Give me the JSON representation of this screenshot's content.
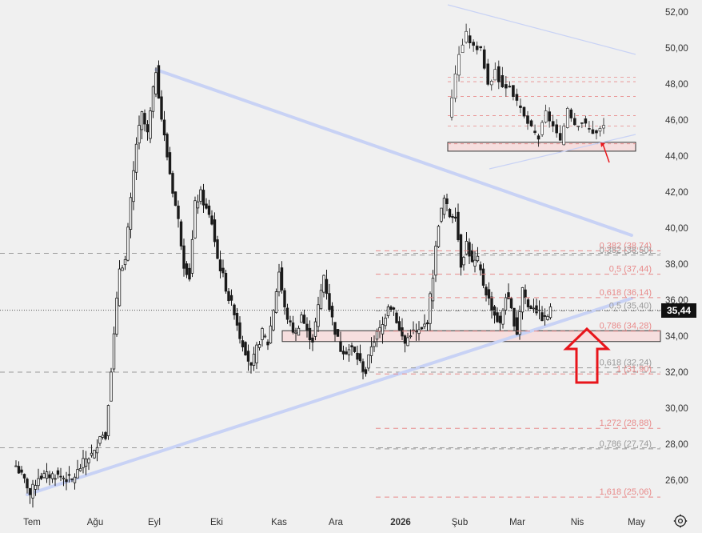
{
  "chart_data": {
    "type": "candlestick",
    "y_axis": {
      "range": [
        24.4,
        53.5
      ],
      "ticks": [
        "26,00",
        "28,00",
        "30,00",
        "32,00",
        "34,00",
        "36,00",
        "38,00",
        "40,00",
        "42,00",
        "44,00",
        "46,00",
        "48,00",
        "50,00",
        "52,00"
      ],
      "tick_values": [
        26,
        28,
        30,
        32,
        34,
        36,
        38,
        40,
        42,
        44,
        46,
        48,
        50,
        52
      ],
      "position": "right"
    },
    "x_axis": {
      "tick_labels": [
        "Tem",
        "Ağu",
        "Eyl",
        "Eki",
        "Kas",
        "Ara",
        "2026",
        "Şub",
        "Mar",
        "Nis",
        "May"
      ],
      "bold_labels": [
        "2026"
      ]
    },
    "current_price": {
      "label": "35,44",
      "value": 35.44
    },
    "series": {
      "start_index": 0,
      "end_index": 191,
      "anchors": [
        [
          0,
          26.8
        ],
        [
          4,
          25.7
        ],
        [
          5,
          25.2
        ],
        [
          8,
          26.2
        ],
        [
          14,
          26.3
        ],
        [
          20,
          26.0
        ],
        [
          25,
          27.2
        ],
        [
          28,
          27.5
        ],
        [
          30,
          28.6
        ],
        [
          32,
          28.4
        ],
        [
          33,
          30.4
        ],
        [
          35,
          34.0
        ],
        [
          37,
          37.8
        ],
        [
          39,
          38.2
        ],
        [
          41,
          41.5
        ],
        [
          43,
          44.7
        ],
        [
          45,
          46.3
        ],
        [
          47,
          45.2
        ],
        [
          49,
          47.6
        ],
        [
          50,
          48.8
        ],
        [
          52,
          46.1
        ],
        [
          54,
          44.0
        ],
        [
          56,
          42.1
        ],
        [
          58,
          40.4
        ],
        [
          60,
          38.0
        ],
        [
          62,
          37.3
        ],
        [
          64,
          41.3
        ],
        [
          66,
          41.9
        ],
        [
          68,
          41.0
        ],
        [
          70,
          40.3
        ],
        [
          72,
          38.3
        ],
        [
          74,
          37.3
        ],
        [
          76,
          36.1
        ],
        [
          78,
          35.4
        ],
        [
          80,
          34.0
        ],
        [
          82,
          33.2
        ],
        [
          84,
          32.2
        ],
        [
          86,
          33.3
        ],
        [
          88,
          34.2
        ],
        [
          90,
          33.6
        ],
        [
          92,
          35.5
        ],
        [
          94,
          37.6
        ],
        [
          96,
          35.5
        ],
        [
          98,
          34.6
        ],
        [
          100,
          34.1
        ],
        [
          102,
          35.2
        ],
        [
          104,
          34.2
        ],
        [
          106,
          33.8
        ],
        [
          108,
          35.6
        ],
        [
          110,
          37.4
        ],
        [
          112,
          35.6
        ],
        [
          114,
          34.3
        ],
        [
          116,
          33.3
        ],
        [
          118,
          33.2
        ],
        [
          120,
          33.3
        ],
        [
          122,
          32.8
        ],
        [
          124,
          32.2
        ],
        [
          125,
          32.0
        ],
        [
          127,
          33.5
        ],
        [
          129,
          34.1
        ],
        [
          131,
          34.6
        ],
        [
          133,
          35.8
        ],
        [
          135,
          35.5
        ],
        [
          137,
          34.3
        ],
        [
          139,
          33.6
        ],
        [
          141,
          34.2
        ],
        [
          143,
          34.2
        ],
        [
          145,
          34.3
        ],
        [
          147,
          34.9
        ],
        [
          149,
          37.4
        ],
        [
          151,
          40.3
        ],
        [
          153,
          41.6
        ],
        [
          155,
          40.7
        ],
        [
          157,
          40.8
        ],
        [
          159,
          38.0
        ],
        [
          161,
          39.2
        ],
        [
          163,
          38.0
        ],
        [
          165,
          38.2
        ],
        [
          167,
          36.9
        ],
        [
          169,
          36.0
        ],
        [
          171,
          35.2
        ],
        [
          173,
          34.6
        ],
        [
          175,
          36.3
        ],
        [
          177,
          35.4
        ],
        [
          179,
          34.2
        ],
        [
          181,
          36.7
        ],
        [
          183,
          35.6
        ],
        [
          185,
          35.7
        ],
        [
          187,
          35.2
        ],
        [
          189,
          34.9
        ],
        [
          191,
          35.44
        ]
      ]
    },
    "trendlines": [
      {
        "name": "upper",
        "from": [
          50,
          48.8
        ],
        "to": [
          220,
          39.6
        ]
      },
      {
        "name": "lower",
        "from": [
          4,
          25.2
        ],
        "to": [
          220,
          36.1
        ]
      }
    ],
    "support_zone": {
      "y_low": 33.7,
      "y_high": 34.3
    },
    "horizontal_levels": [
      {
        "value": 38.6,
        "style": "gray"
      },
      {
        "value": 32.0,
        "style": "gray"
      },
      {
        "value": 27.8,
        "style": "gray"
      }
    ],
    "fib_levels": [
      {
        "label": "0,382 (38,74)",
        "value": 38.74,
        "color": "#e88a8a"
      },
      {
        "label": "0,382 (38,50)",
        "value": 38.5,
        "color": "#9a9a9a"
      },
      {
        "label": "0,5 (37,44)",
        "value": 37.44,
        "color": "#e88a8a"
      },
      {
        "label": "0,618 (36,14)",
        "value": 36.14,
        "color": "#e88a8a"
      },
      {
        "label": "0,5 (35,40)",
        "value": 35.4,
        "color": "#9a9a9a"
      },
      {
        "label": "0,786 (34,28)",
        "value": 34.28,
        "color": "#e88a8a"
      },
      {
        "label": "0,618 (32,24)",
        "value": 32.24,
        "color": "#9a9a9a"
      },
      {
        "label": "1 (31,90)",
        "value": 31.9,
        "color": "#e88a8a"
      },
      {
        "label": "1,272 (28,88)",
        "value": 28.88,
        "color": "#e88a8a"
      },
      {
        "label": "0,786 (27,74)",
        "value": 27.74,
        "color": "#9a9a9a"
      },
      {
        "label": "1,618 (25,06)",
        "value": 25.06,
        "color": "#e88a8a"
      }
    ],
    "annotation": {
      "type": "arrow-up",
      "at_index": 176,
      "color": "#e8151b"
    },
    "colors": {
      "background": "#f0f0f0",
      "candle": "#1a1a1a",
      "trendline": "#c8d2f5",
      "zone_fill": "#f6dede",
      "zone_stroke": "#333333",
      "grid": "#aaaaaa"
    }
  },
  "icons": {
    "settings": "settings-gear-icon"
  }
}
